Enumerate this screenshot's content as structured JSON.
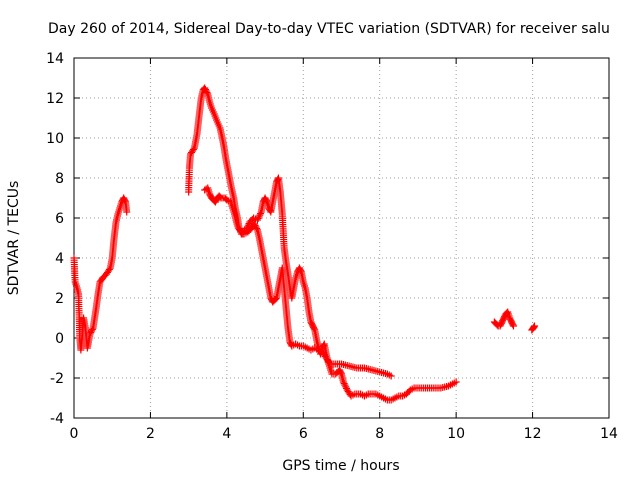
{
  "chart_data": {
    "type": "scatter",
    "title": "Day 260 of 2014, Sidereal Day-to-day VTEC variation (SDTVAR) for receiver salu",
    "xlabel": "GPS time / hours",
    "ylabel": "SDTVAR / TECUs",
    "xlim": [
      0,
      14
    ],
    "ylim": [
      -4,
      14
    ],
    "xticks": [
      "0",
      "2",
      "4",
      "6",
      "8",
      "10",
      "12",
      "14"
    ],
    "yticks": [
      "-4",
      "-2",
      "0",
      "2",
      "4",
      "6",
      "8",
      "10",
      "12",
      "14"
    ],
    "grid": true,
    "marker": "+",
    "series_color": "#ff0000",
    "series": [
      {
        "name": "SDTVAR",
        "segments": [
          [
            [
              0.0,
              4.0
            ],
            [
              0.03,
              2.8
            ],
            [
              0.08,
              2.5
            ],
            [
              0.12,
              2.2
            ],
            [
              0.15,
              0.0
            ],
            [
              0.18,
              -0.6
            ],
            [
              0.22,
              0.2
            ],
            [
              0.25,
              1.0
            ],
            [
              0.3,
              0.5
            ],
            [
              0.35,
              -0.5
            ],
            [
              0.42,
              0.2
            ],
            [
              0.5,
              0.5
            ],
            [
              0.58,
              1.5
            ],
            [
              0.63,
              2.2
            ],
            [
              0.68,
              2.8
            ],
            [
              0.75,
              3.0
            ],
            [
              0.85,
              3.2
            ],
            [
              0.95,
              3.5
            ],
            [
              1.0,
              4.0
            ],
            [
              1.05,
              5.0
            ],
            [
              1.1,
              5.8
            ],
            [
              1.15,
              6.2
            ],
            [
              1.2,
              6.5
            ],
            [
              1.25,
              6.8
            ],
            [
              1.3,
              7.0
            ],
            [
              1.35,
              6.8
            ],
            [
              1.38,
              6.3
            ]
          ],
          [
            [
              3.0,
              7.3
            ],
            [
              3.02,
              8.5
            ],
            [
              3.05,
              9.2
            ],
            [
              3.15,
              9.5
            ],
            [
              3.22,
              10.2
            ],
            [
              3.28,
              11.2
            ],
            [
              3.33,
              12.0
            ],
            [
              3.38,
              12.4
            ],
            [
              3.42,
              12.5
            ],
            [
              3.5,
              12.2
            ],
            [
              3.55,
              11.8
            ],
            [
              3.6,
              11.5
            ],
            [
              3.67,
              11.2
            ],
            [
              3.75,
              10.8
            ],
            [
              3.82,
              10.5
            ],
            [
              3.88,
              10.0
            ],
            [
              3.93,
              9.5
            ],
            [
              3.97,
              9.0
            ],
            [
              4.02,
              8.5
            ],
            [
              4.07,
              8.0
            ],
            [
              4.12,
              7.5
            ],
            [
              4.18,
              7.0
            ],
            [
              4.22,
              6.5
            ],
            [
              4.28,
              6.0
            ],
            [
              4.32,
              5.5
            ],
            [
              4.38,
              5.2
            ],
            [
              4.45,
              5.2
            ],
            [
              4.55,
              5.3
            ],
            [
              4.65,
              5.5
            ],
            [
              4.72,
              5.7
            ],
            [
              4.8,
              5.4
            ],
            [
              4.85,
              5.0
            ],
            [
              4.9,
              4.5
            ],
            [
              4.95,
              4.0
            ],
            [
              5.0,
              3.5
            ],
            [
              5.05,
              3.0
            ],
            [
              5.1,
              2.5
            ],
            [
              5.15,
              2.0
            ],
            [
              5.2,
              1.8
            ],
            [
              5.25,
              1.9
            ],
            [
              5.3,
              2.0
            ],
            [
              5.35,
              2.5
            ],
            [
              5.4,
              3.0
            ],
            [
              5.45,
              3.5
            ],
            [
              5.5,
              2.5
            ],
            [
              5.55,
              1.5
            ],
            [
              5.6,
              0.5
            ],
            [
              5.65,
              -0.2
            ],
            [
              5.7,
              -0.4
            ],
            [
              5.8,
              -0.3
            ],
            [
              5.9,
              -0.4
            ],
            [
              6.0,
              -0.4
            ],
            [
              6.1,
              -0.5
            ],
            [
              6.2,
              -0.6
            ],
            [
              6.3,
              -0.5
            ],
            [
              6.4,
              -0.6
            ],
            [
              6.5,
              -0.7
            ],
            [
              6.6,
              -1.0
            ],
            [
              6.7,
              -1.3
            ],
            [
              6.8,
              -1.3
            ],
            [
              6.9,
              -1.3
            ],
            [
              7.0,
              -1.3
            ],
            [
              7.2,
              -1.4
            ],
            [
              7.4,
              -1.5
            ],
            [
              7.6,
              -1.5
            ],
            [
              7.8,
              -1.6
            ],
            [
              8.0,
              -1.7
            ],
            [
              8.2,
              -1.8
            ],
            [
              8.3,
              -1.9
            ]
          ],
          [
            [
              3.42,
              7.4
            ],
            [
              3.5,
              7.5
            ],
            [
              3.55,
              7.2
            ],
            [
              3.6,
              7.0
            ],
            [
              3.65,
              6.9
            ],
            [
              3.7,
              6.8
            ],
            [
              3.75,
              7.0
            ],
            [
              3.8,
              7.1
            ],
            [
              3.85,
              7.0
            ],
            [
              3.95,
              7.0
            ],
            [
              4.0,
              6.9
            ],
            [
              4.1,
              6.8
            ],
            [
              4.15,
              6.5
            ],
            [
              4.2,
              6.2
            ],
            [
              4.25,
              5.8
            ],
            [
              4.3,
              5.5
            ],
            [
              4.38,
              5.3
            ],
            [
              4.5,
              5.4
            ],
            [
              4.6,
              5.8
            ],
            [
              4.7,
              6.0
            ],
            [
              4.8,
              5.9
            ],
            [
              4.9,
              6.3
            ],
            [
              4.95,
              6.8
            ],
            [
              5.0,
              7.0
            ],
            [
              5.05,
              6.8
            ],
            [
              5.1,
              6.5
            ],
            [
              5.15,
              6.3
            ],
            [
              5.2,
              6.8
            ],
            [
              5.25,
              7.3
            ],
            [
              5.3,
              7.8
            ],
            [
              5.35,
              8.0
            ],
            [
              5.4,
              7.3
            ],
            [
              5.45,
              6.2
            ],
            [
              5.5,
              4.5
            ],
            [
              5.55,
              3.8
            ],
            [
              5.6,
              3.2
            ],
            [
              5.65,
              2.5
            ],
            [
              5.7,
              2.0
            ],
            [
              5.75,
              2.5
            ],
            [
              5.8,
              3.0
            ],
            [
              5.85,
              3.3
            ],
            [
              5.9,
              3.5
            ],
            [
              5.95,
              3.3
            ],
            [
              6.0,
              2.8
            ],
            [
              6.05,
              2.5
            ],
            [
              6.1,
              2.0
            ],
            [
              6.15,
              1.3
            ],
            [
              6.2,
              0.8
            ],
            [
              6.25,
              0.6
            ],
            [
              6.3,
              0.4
            ],
            [
              6.35,
              -0.1
            ],
            [
              6.4,
              -0.5
            ],
            [
              6.45,
              -0.8
            ],
            [
              6.5,
              -0.5
            ],
            [
              6.55,
              -0.3
            ],
            [
              6.6,
              -0.8
            ],
            [
              6.65,
              -1.2
            ],
            [
              6.7,
              -1.5
            ],
            [
              6.75,
              -1.8
            ],
            [
              6.85,
              -1.8
            ],
            [
              6.95,
              -1.6
            ],
            [
              7.0,
              -1.8
            ],
            [
              7.05,
              -2.2
            ],
            [
              7.15,
              -2.6
            ],
            [
              7.25,
              -2.9
            ],
            [
              7.35,
              -2.8
            ],
            [
              7.5,
              -2.8
            ],
            [
              7.6,
              -2.9
            ],
            [
              7.7,
              -2.8
            ],
            [
              7.8,
              -2.8
            ],
            [
              7.9,
              -2.8
            ],
            [
              8.0,
              -2.9
            ],
            [
              8.1,
              -3.0
            ],
            [
              8.2,
              -3.1
            ],
            [
              8.3,
              -3.1
            ],
            [
              8.4,
              -3.0
            ],
            [
              8.5,
              -2.9
            ],
            [
              8.6,
              -2.9
            ],
            [
              8.7,
              -2.8
            ],
            [
              8.8,
              -2.6
            ],
            [
              8.9,
              -2.5
            ],
            [
              9.0,
              -2.5
            ],
            [
              9.2,
              -2.5
            ],
            [
              9.4,
              -2.5
            ],
            [
              9.6,
              -2.5
            ],
            [
              9.8,
              -2.4
            ],
            [
              9.9,
              -2.3
            ],
            [
              10.0,
              -2.2
            ]
          ],
          [
            [
              11.0,
              0.8
            ],
            [
              11.05,
              0.7
            ],
            [
              11.1,
              0.6
            ],
            [
              11.15,
              0.6
            ],
            [
              11.2,
              0.8
            ],
            [
              11.25,
              1.0
            ],
            [
              11.3,
              1.2
            ],
            [
              11.35,
              1.3
            ],
            [
              11.4,
              1.0
            ],
            [
              11.45,
              0.8
            ],
            [
              11.5,
              0.6
            ]
          ],
          [
            [
              11.98,
              0.4
            ],
            [
              12.02,
              0.5
            ],
            [
              12.05,
              0.6
            ]
          ]
        ]
      }
    ]
  }
}
